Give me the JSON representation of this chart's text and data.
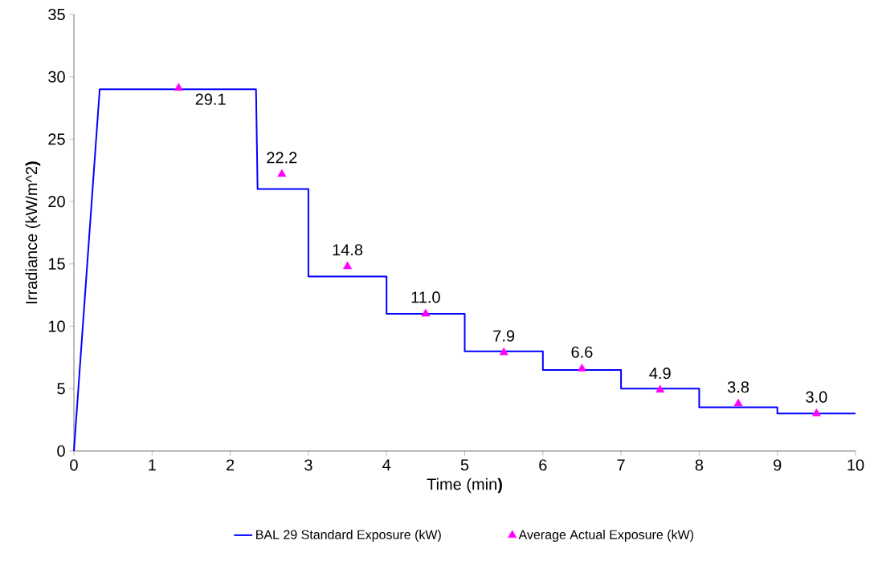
{
  "chart_data": {
    "type": "line",
    "xlabel": "Time (min**)**",
    "ylabel": "Irradiance (kW/m^2**)**",
    "xlim": [
      0,
      10
    ],
    "xticks": [
      0,
      1,
      2,
      3,
      4,
      5,
      6,
      7,
      8,
      9,
      10
    ],
    "ylim": [
      0,
      35
    ],
    "yticks": [
      0,
      5,
      10,
      15,
      20,
      25,
      30,
      35
    ],
    "grid": false,
    "legend": "bottom",
    "series": [
      {
        "name": "BAL 29 Standard Exposure (kW)",
        "color": "#0000ff",
        "marker": "none",
        "x": [
          0,
          0.33,
          2.33,
          2.35,
          3,
          3,
          4,
          4,
          5,
          5,
          6,
          6,
          7,
          7,
          8,
          8,
          9,
          9,
          10
        ],
        "values": [
          0,
          29,
          29,
          21,
          21,
          14,
          14,
          11,
          11,
          8,
          8,
          6.5,
          6.5,
          5,
          5,
          3.5,
          3.5,
          3,
          3
        ]
      },
      {
        "name": "Average Actual Exposure (kW)",
        "type": "scatter",
        "color": "#ff00ff",
        "marker": "triangle",
        "x": [
          1.34,
          2.66,
          3.5,
          4.5,
          5.5,
          6.5,
          7.5,
          8.5,
          9.5
        ],
        "values": [
          29.1,
          22.2,
          14.8,
          11.0,
          7.9,
          6.6,
          4.9,
          3.8,
          3.0
        ],
        "value_labels": [
          "29.1",
          "22.2",
          "14.8",
          "11.0",
          "7.9",
          "6.6",
          "4.9",
          "3.8",
          "3.0"
        ]
      }
    ]
  }
}
